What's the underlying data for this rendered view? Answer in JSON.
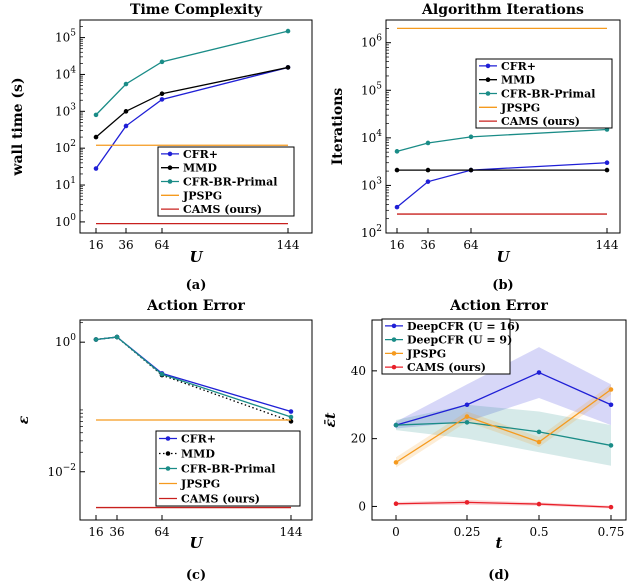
{
  "chart_data": [
    {
      "type": "line",
      "title": "Time Complexity",
      "xlabel": "U",
      "ylabel": "wall time (s)",
      "sublabel": "(a)",
      "yscale": "log",
      "x": [
        16,
        36,
        64,
        144
      ],
      "xticks": [
        "16",
        "36",
        "64",
        "144"
      ],
      "ylim": [
        0.5,
        300000
      ],
      "yticks": [
        {
          "value": 1,
          "base": "10",
          "exp": "0"
        },
        {
          "value": 10,
          "base": "10",
          "exp": "1"
        },
        {
          "value": 100,
          "base": "10",
          "exp": "2"
        },
        {
          "value": 1000,
          "base": "10",
          "exp": "3"
        },
        {
          "value": 10000,
          "base": "10",
          "exp": "4"
        },
        {
          "value": 100000,
          "base": "10",
          "exp": "5"
        }
      ],
      "legend_position": "lower-right",
      "series": [
        {
          "name": "CFR+",
          "color": "#1f1fd6",
          "marker": "dot",
          "dash": "solid",
          "values": [
            28,
            400,
            2100,
            15500
          ]
        },
        {
          "name": "MMD",
          "color": "#000000",
          "marker": "dot",
          "dash": "solid",
          "values": [
            200,
            1000,
            3000,
            15500
          ]
        },
        {
          "name": "CFR-BR-Primal",
          "color": "#1a8c87",
          "marker": "dot",
          "dash": "solid",
          "values": [
            800,
            5500,
            22000,
            150000
          ]
        },
        {
          "name": "JPSPG",
          "color": "#f59a1e",
          "marker": "none",
          "dash": "solid",
          "values": [
            120,
            120,
            120,
            120
          ]
        },
        {
          "name": "CAMS (ours)",
          "color": "#c8201e",
          "marker": "none",
          "dash": "solid",
          "values": [
            0.9,
            0.9,
            0.9,
            0.9
          ]
        }
      ]
    },
    {
      "type": "line",
      "title": "Algorithm Iterations",
      "xlabel": "U",
      "ylabel": "Iterations",
      "sublabel": "(b)",
      "yscale": "log",
      "x": [
        16,
        36,
        64,
        144
      ],
      "xticks": [
        "16",
        "36",
        "64",
        "144"
      ],
      "ylim": [
        100,
        3000000
      ],
      "yticks": [
        {
          "value": 100,
          "base": "10",
          "exp": "2"
        },
        {
          "value": 1000,
          "base": "10",
          "exp": "3"
        },
        {
          "value": 10000,
          "base": "10",
          "exp": "4"
        },
        {
          "value": 100000,
          "base": "10",
          "exp": "5"
        },
        {
          "value": 1000000,
          "base": "10",
          "exp": "6"
        }
      ],
      "legend_position": "upper-right",
      "series": [
        {
          "name": "CFR+",
          "color": "#1f1fd6",
          "marker": "dot",
          "dash": "solid",
          "values": [
            350,
            1200,
            2100,
            3000
          ]
        },
        {
          "name": "MMD",
          "color": "#000000",
          "marker": "dot",
          "dash": "solid",
          "values": [
            2100,
            2100,
            2100,
            2100
          ]
        },
        {
          "name": "CFR-BR-Primal",
          "color": "#1a8c87",
          "marker": "dot",
          "dash": "solid",
          "values": [
            5200,
            7800,
            10500,
            15000
          ]
        },
        {
          "name": "JPSPG",
          "color": "#f59a1e",
          "marker": "none",
          "dash": "solid",
          "values": [
            2000000,
            2000000,
            2000000,
            2000000
          ]
        },
        {
          "name": "CAMS (ours)",
          "color": "#c8201e",
          "marker": "none",
          "dash": "solid",
          "values": [
            250,
            250,
            250,
            250
          ]
        }
      ]
    },
    {
      "type": "line",
      "title": "Action Error",
      "xlabel": "U",
      "ylabel": "ε",
      "sublabel": "(c)",
      "yscale": "log",
      "x": [
        16,
        36,
        64,
        144
      ],
      "xticks": [
        "16",
        "36",
        "64",
        "144"
      ],
      "ylim": [
        0.0018,
        2.2
      ],
      "yticks": [
        {
          "value": 1,
          "base": "10",
          "exp": "0"
        },
        {
          "value": 0.01,
          "base": "10",
          "exp": "−2"
        }
      ],
      "legend_position": "lower-right",
      "series": [
        {
          "name": "CFR+",
          "color": "#1f1fd6",
          "marker": "dot",
          "dash": "solid",
          "values": [
            1.1,
            1.2,
            0.33,
            0.085
          ]
        },
        {
          "name": "MMD",
          "color": "#000000",
          "marker": "dot",
          "dash": "dotted",
          "values": [
            1.1,
            1.2,
            0.31,
            0.06
          ]
        },
        {
          "name": "CFR-BR-Primal",
          "color": "#1a8c87",
          "marker": "dot",
          "dash": "solid",
          "values": [
            1.1,
            1.2,
            0.32,
            0.07
          ]
        },
        {
          "name": "JPSPG",
          "color": "#f59a1e",
          "marker": "none",
          "dash": "solid",
          "values": [
            0.063,
            0.063,
            0.063,
            0.063
          ]
        },
        {
          "name": "CAMS (ours)",
          "color": "#c8201e",
          "marker": "none",
          "dash": "solid",
          "values": [
            0.0028,
            0.0028,
            0.0028,
            0.0028
          ]
        }
      ]
    },
    {
      "type": "line",
      "title": "Action Error",
      "xlabel": "t",
      "ylabel": "ε̄t",
      "sublabel": "(d)",
      "yscale": "linear",
      "x": [
        0,
        0.25,
        0.5,
        0.75
      ],
      "xticks": [
        "0",
        "0.25",
        "0.5",
        "0.75"
      ],
      "ylim": [
        -4,
        55
      ],
      "yticks": [
        {
          "value": 0,
          "label": "0"
        },
        {
          "value": 20,
          "label": "20"
        },
        {
          "value": 40,
          "label": "40"
        }
      ],
      "legend_position": "upper-left",
      "series": [
        {
          "name": "DeepCFR (U = 16)",
          "color": "#1f1fd6",
          "marker": "dot",
          "dash": "solid",
          "values": [
            24,
            30,
            39.5,
            30
          ],
          "lower": [
            23,
            25,
            32,
            24
          ],
          "upper": [
            25,
            36,
            47,
            36
          ]
        },
        {
          "name": "DeepCFR (U = 9)",
          "color": "#1a8c87",
          "marker": "dot",
          "dash": "solid",
          "values": [
            24,
            24.8,
            22,
            18
          ],
          "lower": [
            22.5,
            20,
            16,
            12
          ],
          "upper": [
            25.5,
            30,
            28,
            24
          ]
        },
        {
          "name": "JPSPG",
          "color": "#f59a1e",
          "marker": "dot",
          "dash": "solid",
          "values": [
            13,
            26.5,
            19,
            34.5
          ],
          "lower": [
            11.5,
            25,
            17.5,
            33
          ],
          "upper": [
            14.5,
            28,
            20.5,
            36
          ]
        },
        {
          "name": "CAMS (ours)",
          "color": "#e8202a",
          "marker": "dot",
          "dash": "solid",
          "values": [
            0.8,
            1.2,
            0.7,
            -0.2
          ],
          "lower": [
            0.3,
            0.5,
            0.2,
            -0.6
          ],
          "upper": [
            1.3,
            1.9,
            1.2,
            0.2
          ]
        }
      ]
    }
  ]
}
